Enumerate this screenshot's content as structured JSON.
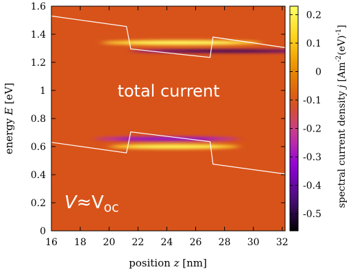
{
  "chart_data": {
    "type": "heatmap",
    "title": "",
    "xlabel": {
      "prefix": "position ",
      "var": "z",
      "suffix": " [nm]"
    },
    "ylabel": {
      "prefix": "energy ",
      "var": "E",
      "suffix": " [eV]"
    },
    "colorbar_label": {
      "prefix": "spectral current density ",
      "var": "j",
      "unit": " [Am",
      "sup1": "-2",
      "mid": "(eV)",
      "sup2": "-1",
      "end": "]"
    },
    "xlim": [
      16,
      32.2
    ],
    "ylim": [
      0,
      1.6
    ],
    "clim": [
      -0.56,
      0.23
    ],
    "x_ticks": [
      16,
      18,
      20,
      22,
      24,
      26,
      28,
      30,
      32
    ],
    "y_ticks": [
      0,
      0.2,
      0.4,
      0.6,
      0.8,
      1,
      1.2,
      1.4,
      1.6
    ],
    "y_tick_labels": [
      "0",
      "0.2",
      "0.4",
      "0.6",
      "0.8",
      "1",
      "1.2",
      "1.4",
      "1.6"
    ],
    "colorbar_ticks": [
      0.2,
      0.1,
      0,
      -0.1,
      -0.2,
      -0.3,
      -0.4,
      -0.5
    ],
    "colorbar_tick_labels": [
      "0.2",
      "0.1",
      "0",
      "-0.1",
      "-0.2",
      "-0.3",
      "-0.4",
      "-0.5"
    ],
    "colormap": [
      "#000000",
      "#4a0e7a",
      "#8e00d9",
      "#c63a9c",
      "#d8531a",
      "#e88a00",
      "#ffd11a",
      "#ffff66"
    ],
    "background_color": "#d8531a",
    "band_edge_color": "#ffffff",
    "conduction_band_edge": [
      {
        "x": 16,
        "y": 1.53
      },
      {
        "x": 21.2,
        "y": 1.455
      },
      {
        "x": 21.5,
        "y": 1.295
      },
      {
        "x": 27.0,
        "y": 1.235
      },
      {
        "x": 27.2,
        "y": 1.38
      },
      {
        "x": 32.2,
        "y": 1.305
      }
    ],
    "valence_band_edge": [
      {
        "x": 16,
        "y": 0.63
      },
      {
        "x": 21.2,
        "y": 0.555
      },
      {
        "x": 21.5,
        "y": 0.705
      },
      {
        "x": 27.0,
        "y": 0.635
      },
      {
        "x": 27.2,
        "y": 0.475
      },
      {
        "x": 32.2,
        "y": 0.405
      }
    ],
    "current_features": [
      {
        "band": "conduction",
        "polarity": "positive",
        "x_center": 25.0,
        "x_halfwidth": 5.5,
        "e_center": 1.34,
        "e_halfwidth": 0.018,
        "peak": 0.23
      },
      {
        "band": "conduction",
        "polarity": "negative",
        "x_center": 28.0,
        "x_halfwidth": 6.5,
        "e_center": 1.28,
        "e_halfwidth": 0.012,
        "peak": -0.56
      },
      {
        "band": "valence",
        "polarity": "negative",
        "x_center": 24.0,
        "x_halfwidth": 5.0,
        "e_center": 0.655,
        "e_halfwidth": 0.018,
        "peak": -0.35
      },
      {
        "band": "valence",
        "polarity": "positive",
        "x_center": 24.5,
        "x_halfwidth": 4.5,
        "e_center": 0.6,
        "e_halfwidth": 0.018,
        "peak": 0.22
      }
    ],
    "annotations": [
      {
        "id": "total-current",
        "text": "total current"
      },
      {
        "id": "voltage",
        "text_v": "V",
        "text_approx": "≈V",
        "text_sub": "oc"
      }
    ]
  }
}
